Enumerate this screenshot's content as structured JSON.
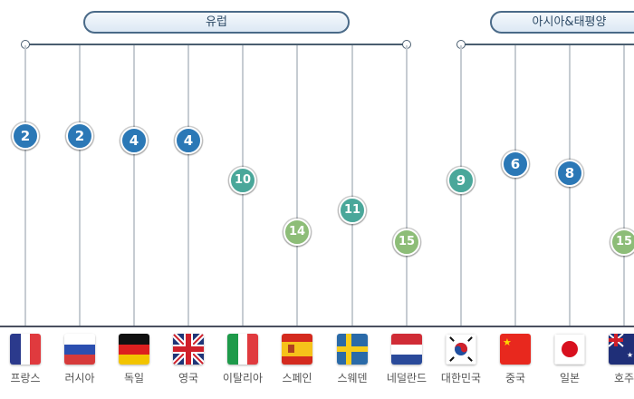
{
  "groups": [
    {
      "label": "유럽"
    },
    {
      "label": "아시아&태평양"
    }
  ],
  "colors": {
    "top": "#2b78b6",
    "mid": "#4aa79a",
    "low": "#8dbd78"
  },
  "chart_data": {
    "type": "scatter",
    "categories": [
      "프랑스",
      "러시아",
      "독일",
      "영국",
      "이탈리아",
      "스페인",
      "스웨덴",
      "네덜란드",
      "대한민국",
      "중국",
      "일본",
      "호주"
    ],
    "values": [
      2,
      2,
      4,
      4,
      10,
      14,
      11,
      15,
      9,
      6,
      8,
      15
    ],
    "groups": [
      "유럽",
      "유럽",
      "유럽",
      "유럽",
      "유럽",
      "유럽",
      "유럽",
      "유럽",
      "아시아&태평양",
      "아시아&태평양",
      "아시아&태평양",
      "아시아&태평양"
    ],
    "flags": [
      "france-flag",
      "russia-flag",
      "germany-flag",
      "uk-flag",
      "italy-flag",
      "spain-flag",
      "sweden-flag",
      "netherlands-flag",
      "korea-flag",
      "china-flag",
      "japan-flag",
      "australia-flag"
    ]
  }
}
